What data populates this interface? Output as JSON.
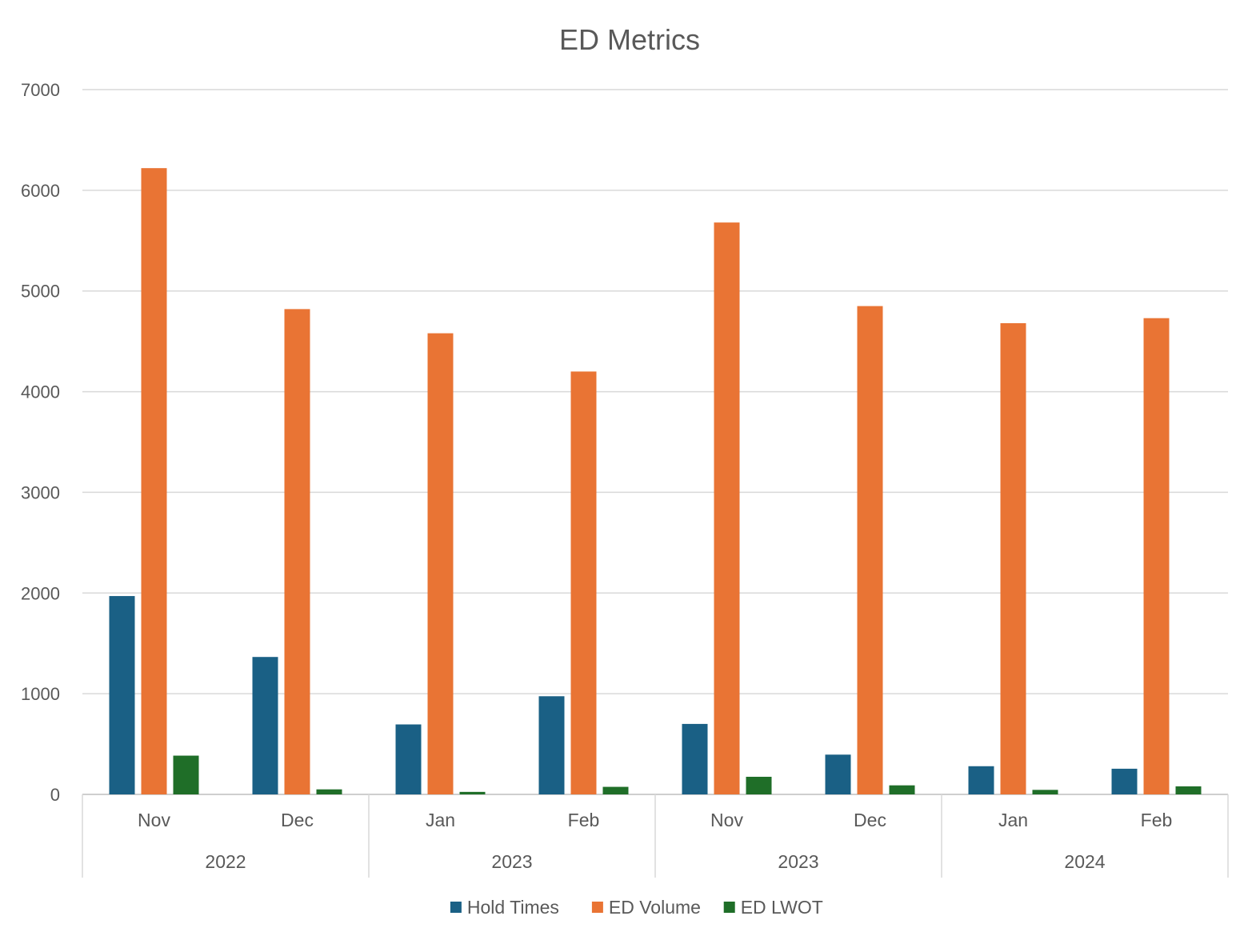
{
  "chart_data": {
    "type": "bar",
    "title": "ED Metrics",
    "ylim": [
      0,
      7000
    ],
    "yticks": [
      0,
      1000,
      2000,
      3000,
      4000,
      5000,
      6000,
      7000
    ],
    "grid": true,
    "legend_position": "bottom",
    "categories": [
      "Nov",
      "Dec",
      "Jan",
      "Feb",
      "Nov",
      "Dec",
      "Jan",
      "Feb"
    ],
    "groups": [
      {
        "label": "2022",
        "span": 2
      },
      {
        "label": "2023",
        "span": 2
      },
      {
        "label": "2023",
        "span": 2
      },
      {
        "label": "2024",
        "span": 2
      }
    ],
    "series": [
      {
        "name": "Hold Times",
        "color": "#1a6085",
        "values": [
          1970,
          1365,
          695,
          975,
          700,
          395,
          280,
          255
        ]
      },
      {
        "name": "ED Volume",
        "color": "#e97434",
        "values": [
          6220,
          4820,
          4580,
          4200,
          5680,
          4850,
          4680,
          4730
        ]
      },
      {
        "name": "ED LWOT",
        "color": "#1f6e28",
        "values": [
          385,
          50,
          25,
          75,
          175,
          90,
          45,
          80
        ]
      }
    ]
  }
}
